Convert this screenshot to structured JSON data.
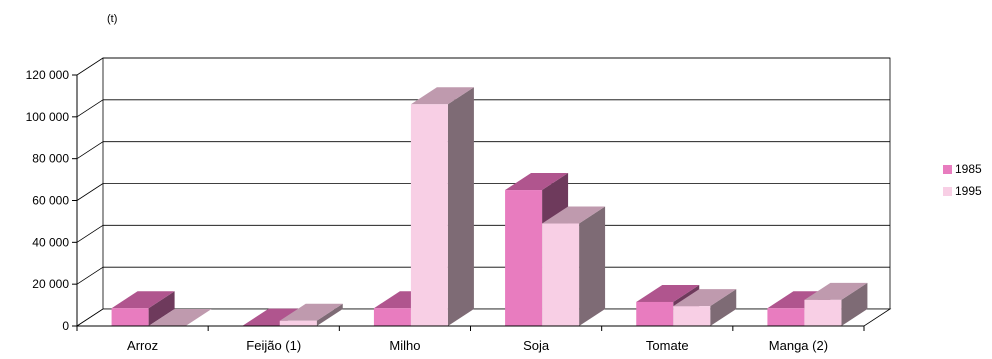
{
  "chart_data": {
    "type": "bar",
    "unit_label": "(t)",
    "categories": [
      "Arroz",
      "Feijão (1)",
      "Milho",
      "Soja",
      "Tomate",
      "Manga (2)"
    ],
    "series": [
      {
        "name": "1985",
        "values": [
          8500,
          200,
          8500,
          65000,
          11500,
          8500
        ],
        "colors": {
          "front": "#e87cbf",
          "top": "#b0558e",
          "side": "#6e3a5c"
        }
      },
      {
        "name": "1995",
        "values": [
          0,
          2500,
          106000,
          49000,
          9500,
          12500
        ],
        "colors": {
          "front": "#f8cfe5",
          "top": "#bf9aae",
          "side": "#7e6b75"
        }
      }
    ],
    "ylim": [
      0,
      120000
    ],
    "yticks": [
      0,
      20000,
      40000,
      60000,
      80000,
      100000,
      120000
    ],
    "ytick_labels": [
      "0",
      "20 000",
      "40 000",
      "60 000",
      "80 000",
      "100 000",
      "120 000"
    ],
    "grid": true,
    "legend_position": "right",
    "style": "3d-clustered-column"
  }
}
